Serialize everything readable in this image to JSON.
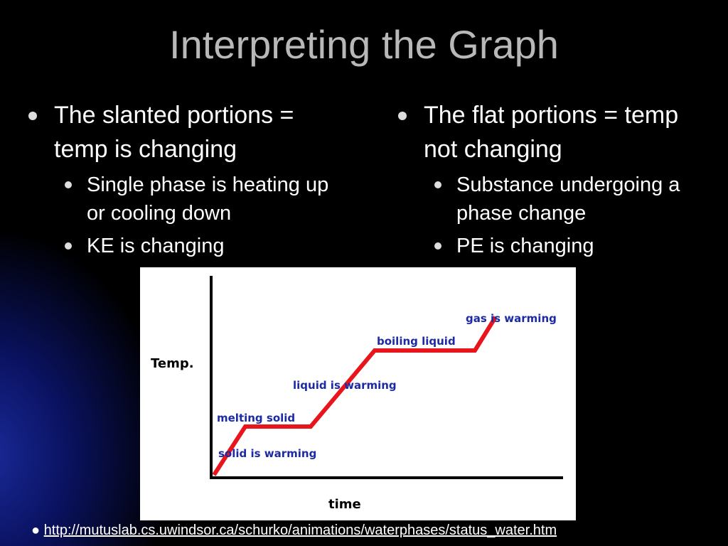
{
  "title": "Interpreting the Graph",
  "columns": [
    {
      "bullet": "The slanted portions = temp is changing",
      "sub": [
        "Single phase is heating up or cooling down",
        "KE is changing"
      ]
    },
    {
      "bullet": "The flat portions = temp not changing",
      "sub": [
        "Substance undergoing a phase change",
        "PE is changing"
      ]
    }
  ],
  "figure": {
    "y_label": "Temp.",
    "x_label": "time",
    "labels": [
      "solid is warming",
      "melting solid",
      "liquid is warming",
      "boiling liquid",
      "gas is warming"
    ]
  },
  "link": "http://mutuslab.cs.uwindsor.ca/schurko/animations/waterphases/status_water.htm"
}
